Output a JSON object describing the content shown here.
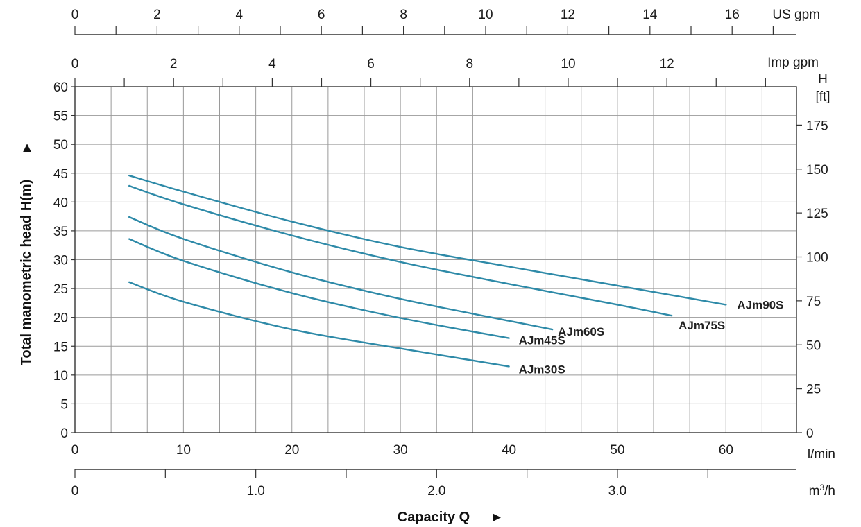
{
  "chart_data": {
    "type": "line",
    "x_axis": {
      "label": "Capacity Q",
      "arrow": "►",
      "unit": "l/min",
      "range": [
        0,
        66.5
      ],
      "ticks": [
        0,
        10,
        20,
        30,
        40,
        50,
        60
      ],
      "grid_step": 3.333
    },
    "y_axis": {
      "label": "Total manometric head H(m)",
      "arrow": "▲",
      "range": [
        0,
        60
      ],
      "ticks": [
        0,
        5,
        10,
        15,
        20,
        25,
        30,
        35,
        40,
        45,
        50,
        55,
        60
      ]
    },
    "secondary_axes": {
      "us_gpm": {
        "unit": "US gpm",
        "tick_labels": [
          "0",
          "2",
          "4",
          "6",
          "8",
          "10",
          "12",
          "14",
          "16"
        ],
        "values": [
          0,
          2,
          4,
          6,
          8,
          10,
          12,
          14,
          16
        ],
        "minor_step": 1,
        "max": 17.5
      },
      "imp_gpm": {
        "unit": "Imp gpm",
        "tick_labels": [
          "0",
          "2",
          "4",
          "6",
          "8",
          "10",
          "12"
        ],
        "values": [
          0,
          2,
          4,
          6,
          8,
          10,
          12
        ],
        "minor_step": 1,
        "max": 14.5
      },
      "ft": {
        "unit_line1": "H",
        "unit_line2": "[ft]",
        "tick_labels": [
          "0",
          "25",
          "50",
          "75",
          "100",
          "125",
          "150",
          "175"
        ],
        "values": [
          0,
          25,
          50,
          75,
          100,
          125,
          150,
          175
        ]
      },
      "m3h": {
        "unit_base": "m",
        "unit_sup": "3",
        "unit_tail": "/h",
        "tick_labels": [
          "0",
          "1.0",
          "2.0",
          "3.0"
        ],
        "values": [
          0,
          1.0,
          2.0,
          3.0
        ],
        "minor_step": 0.5,
        "max": 4.0
      }
    },
    "grid": true,
    "line_color": "#2e8aa8",
    "series": [
      {
        "name": "AJm90S",
        "x": [
          5,
          10,
          20,
          30,
          40,
          50,
          60
        ],
        "y": [
          44.6,
          41.8,
          36.6,
          32.2,
          28.8,
          25.5,
          22.2
        ]
      },
      {
        "name": "AJm75S",
        "x": [
          5,
          10,
          20,
          30,
          40,
          50,
          55
        ],
        "y": [
          42.8,
          39.6,
          34.2,
          29.6,
          25.8,
          22.2,
          20.3
        ]
      },
      {
        "name": "AJm60S",
        "x": [
          5,
          10,
          20,
          30,
          40,
          44
        ],
        "y": [
          37.4,
          33.6,
          27.8,
          23.2,
          19.4,
          17.9
        ]
      },
      {
        "name": "AJm45S",
        "x": [
          5,
          10,
          20,
          30,
          40
        ],
        "y": [
          33.6,
          29.8,
          24.2,
          19.9,
          16.4
        ]
      },
      {
        "name": "AJm30S",
        "x": [
          5,
          10,
          20,
          30,
          40
        ],
        "y": [
          26.1,
          22.7,
          17.9,
          14.6,
          11.5
        ]
      }
    ]
  }
}
